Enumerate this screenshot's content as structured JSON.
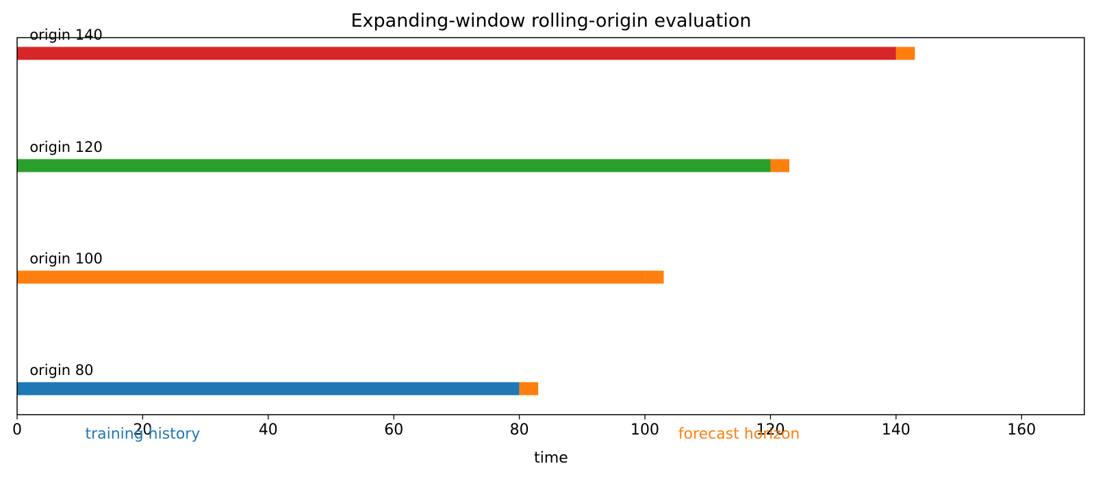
{
  "chart_data": {
    "type": "bar",
    "orientation": "horizontal",
    "title": "Expanding-window rolling-origin evaluation",
    "xlabel": "time",
    "ylabel": "",
    "xlim": [
      0,
      170
    ],
    "xticks": [
      0,
      20,
      40,
      60,
      80,
      100,
      120,
      140,
      160
    ],
    "grid": false,
    "horizon_length": 3,
    "horizon_color": "#ff7f0e",
    "rows": [
      {
        "label": "origin 80",
        "origin": 80,
        "train_start": 0,
        "train_end": 80,
        "horizon_start": 80,
        "horizon_end": 83,
        "train_color": "#1f77b4"
      },
      {
        "label": "origin 100",
        "origin": 100,
        "train_start": 0,
        "train_end": 100,
        "horizon_start": 100,
        "horizon_end": 103,
        "train_color": "#ff7f0e"
      },
      {
        "label": "origin 120",
        "origin": 120,
        "train_start": 0,
        "train_end": 120,
        "horizon_start": 120,
        "horizon_end": 123,
        "train_color": "#2ca02c"
      },
      {
        "label": "origin 140",
        "origin": 140,
        "train_start": 0,
        "train_end": 140,
        "horizon_start": 140,
        "horizon_end": 143,
        "train_color": "#d62728"
      }
    ],
    "annotations": [
      {
        "text": "training history",
        "x": 20,
        "color": "#1f77b4"
      },
      {
        "text": "forecast horizon",
        "x": 115,
        "color": "#ff7f0e"
      }
    ]
  }
}
